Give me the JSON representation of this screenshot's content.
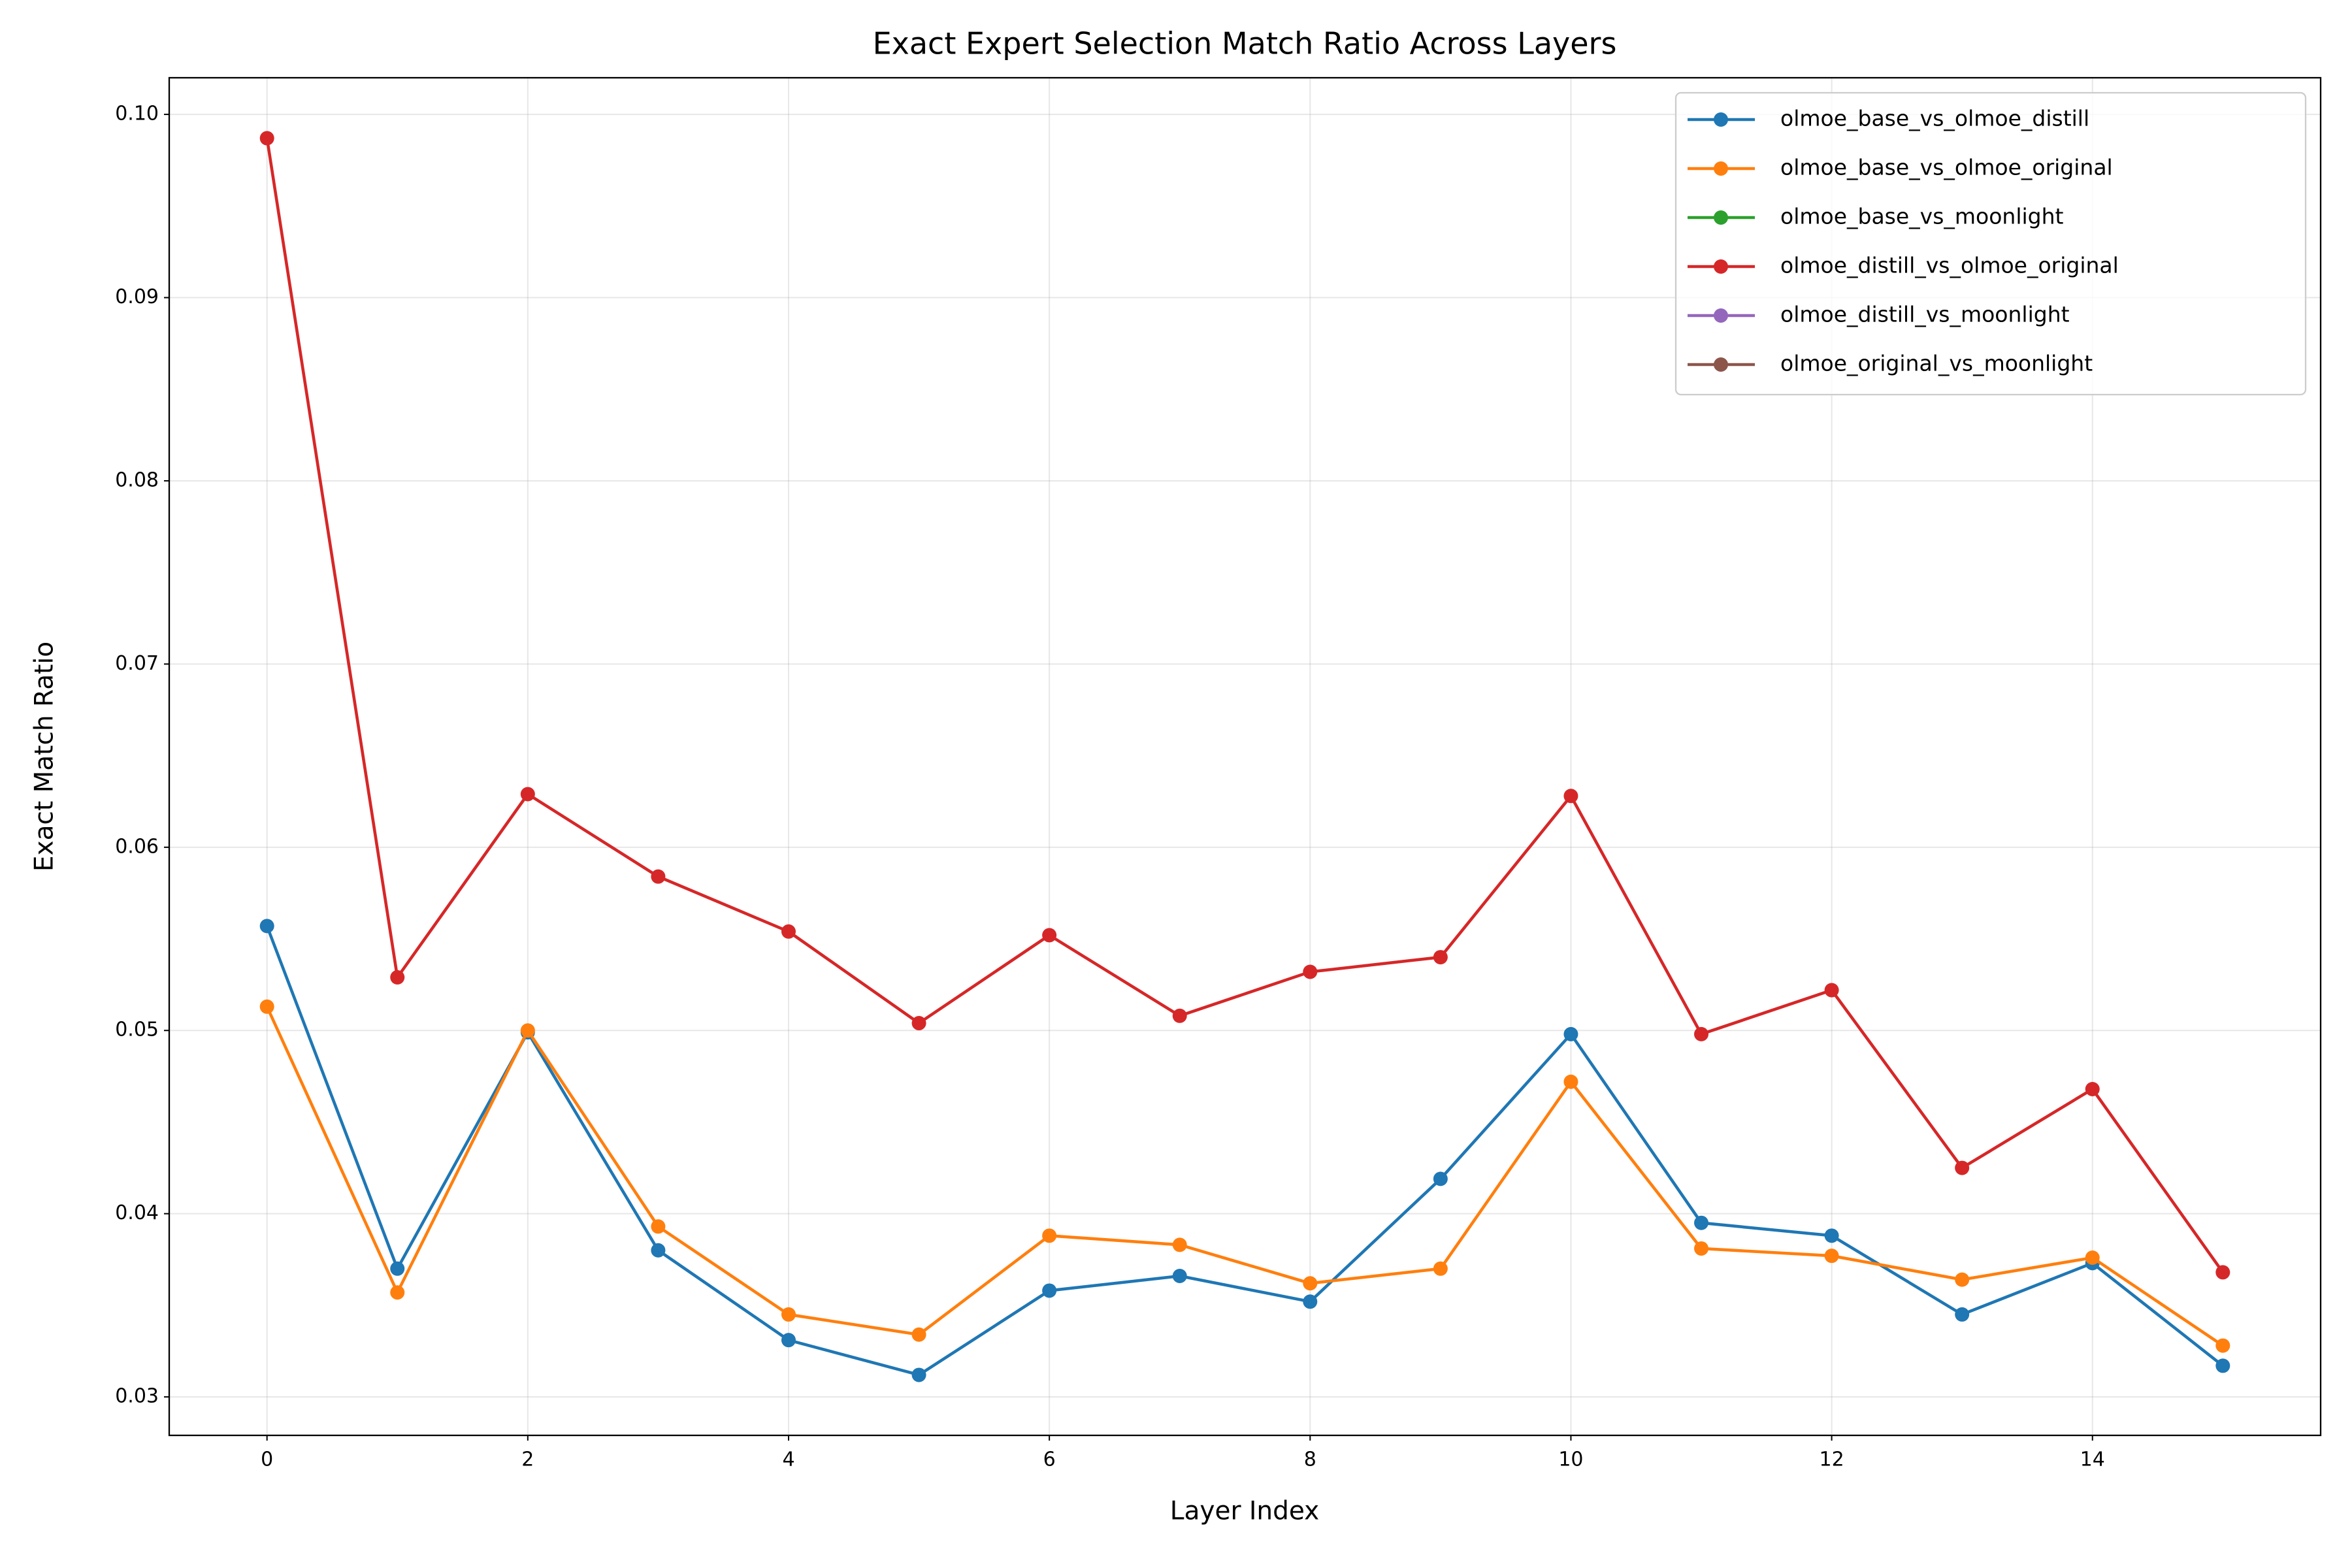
{
  "chart_data": {
    "type": "line",
    "title": "Exact Expert Selection Match Ratio Across Layers",
    "xlabel": "Layer Index",
    "ylabel": "Exact Match Ratio",
    "x": [
      0,
      1,
      2,
      3,
      4,
      5,
      6,
      7,
      8,
      9,
      10,
      11,
      12,
      13,
      14,
      15
    ],
    "series": [
      {
        "name": "olmoe_base_vs_olmoe_distill",
        "color": "#1f77b4",
        "values": [
          0.0557,
          0.037,
          0.0499,
          0.038,
          0.0331,
          0.0312,
          0.0358,
          0.0366,
          0.0352,
          0.0419,
          0.0498,
          0.0395,
          0.0388,
          0.0345,
          0.0373,
          0.0317
        ]
      },
      {
        "name": "olmoe_base_vs_olmoe_original",
        "color": "#ff7f0e",
        "values": [
          0.0513,
          0.0357,
          0.05,
          0.0393,
          0.0345,
          0.0334,
          0.0388,
          0.0383,
          0.0362,
          0.037,
          0.0472,
          0.0381,
          0.0377,
          0.0364,
          0.0376,
          0.0328
        ]
      },
      {
        "name": "olmoe_base_vs_moonlight",
        "color": "#2ca02c",
        "values": [
          null,
          null,
          null,
          null,
          null,
          null,
          null,
          null,
          null,
          null,
          null,
          null,
          null,
          null,
          null,
          null
        ]
      },
      {
        "name": "olmoe_distill_vs_olmoe_original",
        "color": "#d62728",
        "values": [
          0.0987,
          0.0529,
          0.0629,
          0.0584,
          0.0554,
          0.0504,
          0.0552,
          0.0508,
          0.0532,
          0.054,
          0.0628,
          0.0498,
          0.0522,
          0.0425,
          0.0468,
          0.0368
        ]
      },
      {
        "name": "olmoe_distill_vs_moonlight",
        "color": "#9467bd",
        "values": [
          null,
          null,
          null,
          null,
          null,
          null,
          null,
          null,
          null,
          null,
          null,
          null,
          null,
          null,
          null,
          null
        ]
      },
      {
        "name": "olmoe_original_vs_moonlight",
        "color": "#8c564b",
        "values": [
          null,
          null,
          null,
          null,
          null,
          null,
          null,
          null,
          null,
          null,
          null,
          null,
          null,
          null,
          null,
          null
        ]
      }
    ],
    "xlim": [
      -0.75,
      15.75
    ],
    "xticks": [
      0,
      2,
      4,
      6,
      8,
      10,
      12,
      14
    ],
    "ylim": [
      0.0279,
      0.102
    ],
    "yticks": [
      0.03,
      0.04,
      0.05,
      0.06,
      0.07,
      0.08,
      0.09,
      {
        "value": 0.1,
        "label": "0.10"
      }
    ],
    "grid": true,
    "legend": "upper right"
  }
}
